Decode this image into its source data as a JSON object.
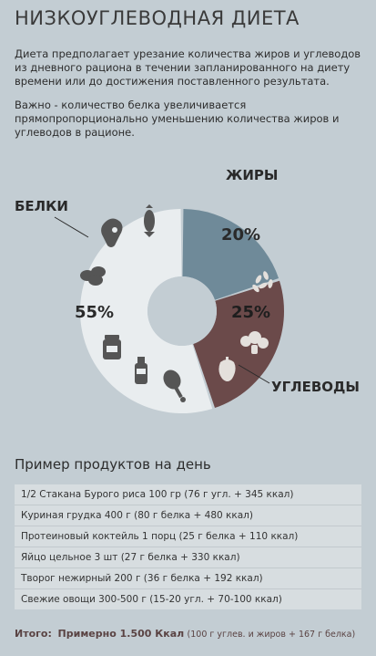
{
  "title": "НИЗКОУГЛЕВОДНАЯ ДИЕТА",
  "intro": "Диета предполагает урезание количества жиров и углеводов из дневного рациона в течении запланированного на диету времени или до достижения поставленного результата.",
  "note": "Важно - количество белка увеличивается прямопропорционально уменьшению количества жиров и углеводов в рационе.",
  "chart_data": {
    "type": "pie",
    "donut": true,
    "slices": [
      {
        "label": "ЖИРЫ",
        "value": 20,
        "value_label": "20%",
        "color": "#6f8a99"
      },
      {
        "label": "УГЛЕВОДЫ",
        "value": 25,
        "value_label": "25%",
        "color": "#6b4a4a"
      },
      {
        "label": "БЕЛКИ",
        "value": 55,
        "value_label": "55%",
        "color": "#e9edef"
      }
    ]
  },
  "icons": [
    "meat-icon",
    "fish-icon",
    "eggs-icon",
    "jar-icon",
    "milk-bottle-icon",
    "chicken-leg-icon",
    "rice-icon",
    "broccoli-icon",
    "pepper-icon"
  ],
  "products": {
    "heading": "Пример продуктов на день",
    "rows": [
      "1/2 Стакана Бурого риса 100 гр   (76 г угл. + 345 ккал)",
      "Куриная грудка 400 г  (80 г белка + 480 ккал)",
      "Протеиновый коктейль 1 порц (25 г белка + 110 ккал)",
      "Яйцо цельное  3 шт (27 г белка + 330 ккал)",
      "Творог нежирный 200 г  (36 г белка + 192 ккал)",
      "Свежие овощи  300-500 г  (15-20 угл. + 70-100 ккал)"
    ]
  },
  "total": {
    "label": "Итого:",
    "main": "Примерно 1.500 Ккал",
    "detail": "(100 г углев. и жиров + 167 г белка)"
  }
}
